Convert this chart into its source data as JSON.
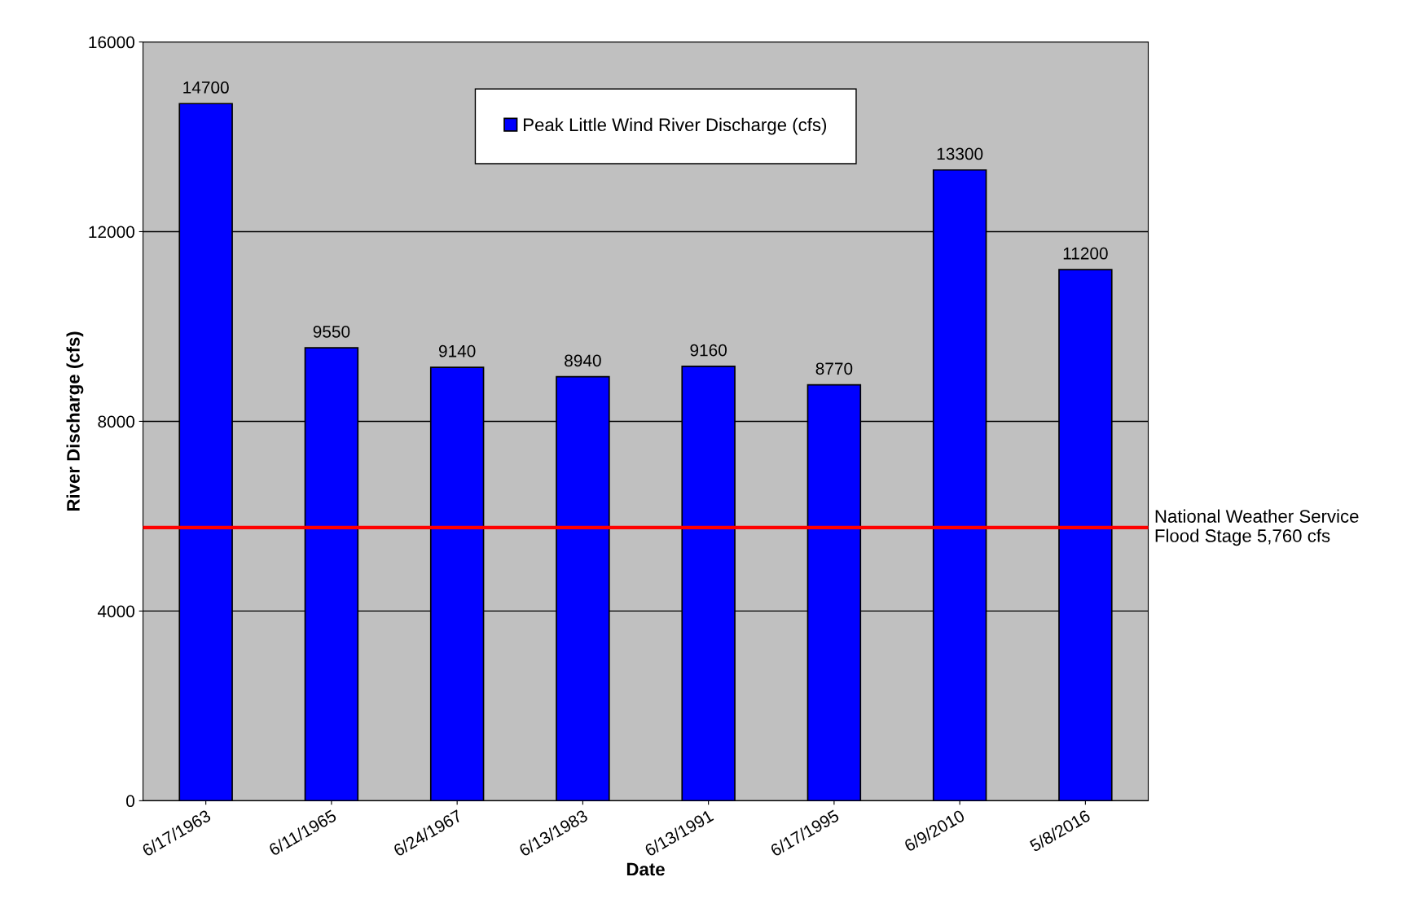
{
  "chart_data": {
    "type": "bar",
    "xlabel": "Date",
    "ylabel": "River Discharge (cfs)",
    "categories": [
      "6/17/1963",
      "6/11/1965",
      "6/24/1967",
      "6/13/1983",
      "6/13/1991",
      "6/17/1995",
      "6/9/2010",
      "5/8/2016"
    ],
    "series": [
      {
        "name": "Peak Little Wind River Discharge (cfs)",
        "color": "#0000ff",
        "values": [
          14700,
          9550,
          9140,
          8940,
          9160,
          8770,
          13300,
          11200
        ]
      }
    ],
    "ylim": [
      0,
      16000
    ],
    "yticks": [
      0,
      4000,
      8000,
      12000,
      16000
    ],
    "grid": "y",
    "legend": "top",
    "data_labels": true,
    "ref_lines": [
      {
        "axis": "y",
        "value": 5760,
        "label": "National Weather Service\nFlood Stage 5,760 cfs",
        "color": "#ff0000",
        "line_style": "solid"
      }
    ]
  }
}
